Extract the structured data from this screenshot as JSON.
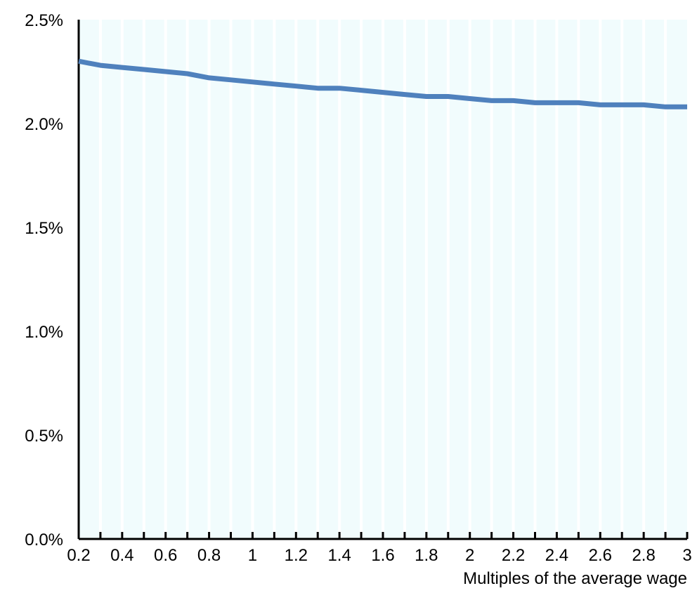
{
  "chart_data": {
    "type": "line",
    "title": "",
    "xlabel": "Multiples of the average wage",
    "ylabel": "",
    "xlim": [
      0.2,
      3
    ],
    "ylim": [
      0,
      0.025
    ],
    "x_tick_values": [
      0.2,
      0.4,
      0.6,
      0.8,
      1,
      1.2,
      1.4,
      1.6,
      1.8,
      2,
      2.2,
      2.4,
      2.6,
      2.8,
      3
    ],
    "x_tick_labels": [
      "0.2",
      "0.4",
      "0.6",
      "0.8",
      "1",
      "1.2",
      "1.4",
      "1.6",
      "1.8",
      "2",
      "2.2",
      "2.4",
      "2.6",
      "2.8",
      "3"
    ],
    "x_minor_step": 0.1,
    "y_tick_values": [
      0,
      0.005,
      0.01,
      0.015,
      0.02,
      0.025
    ],
    "y_tick_labels": [
      "0.0%",
      "0.5%",
      "1.0%",
      "1.5%",
      "2.0%",
      "2.5%"
    ],
    "grid": {
      "vertical": true,
      "horizontal": false
    },
    "legend": "none",
    "colors": {
      "plot_background": "#f1fcfd",
      "grid": "#ffffff",
      "axis": "#000000",
      "series": "#4f81bd"
    },
    "series": [
      {
        "x": [
          0.2,
          0.3,
          0.4,
          0.5,
          0.6,
          0.7,
          0.8,
          0.9,
          1.0,
          1.1,
          1.2,
          1.3,
          1.4,
          1.5,
          1.6,
          1.7,
          1.8,
          1.9,
          2.0,
          2.1,
          2.2,
          2.3,
          2.4,
          2.5,
          2.6,
          2.7,
          2.8,
          2.9,
          3.0
        ],
        "values": [
          0.023,
          0.0228,
          0.0227,
          0.0226,
          0.0225,
          0.0224,
          0.0222,
          0.0221,
          0.022,
          0.0219,
          0.0218,
          0.0217,
          0.0217,
          0.0216,
          0.0215,
          0.0214,
          0.0213,
          0.0213,
          0.0212,
          0.0211,
          0.0211,
          0.021,
          0.021,
          0.021,
          0.0209,
          0.0209,
          0.0209,
          0.0208,
          0.0208
        ]
      }
    ]
  }
}
